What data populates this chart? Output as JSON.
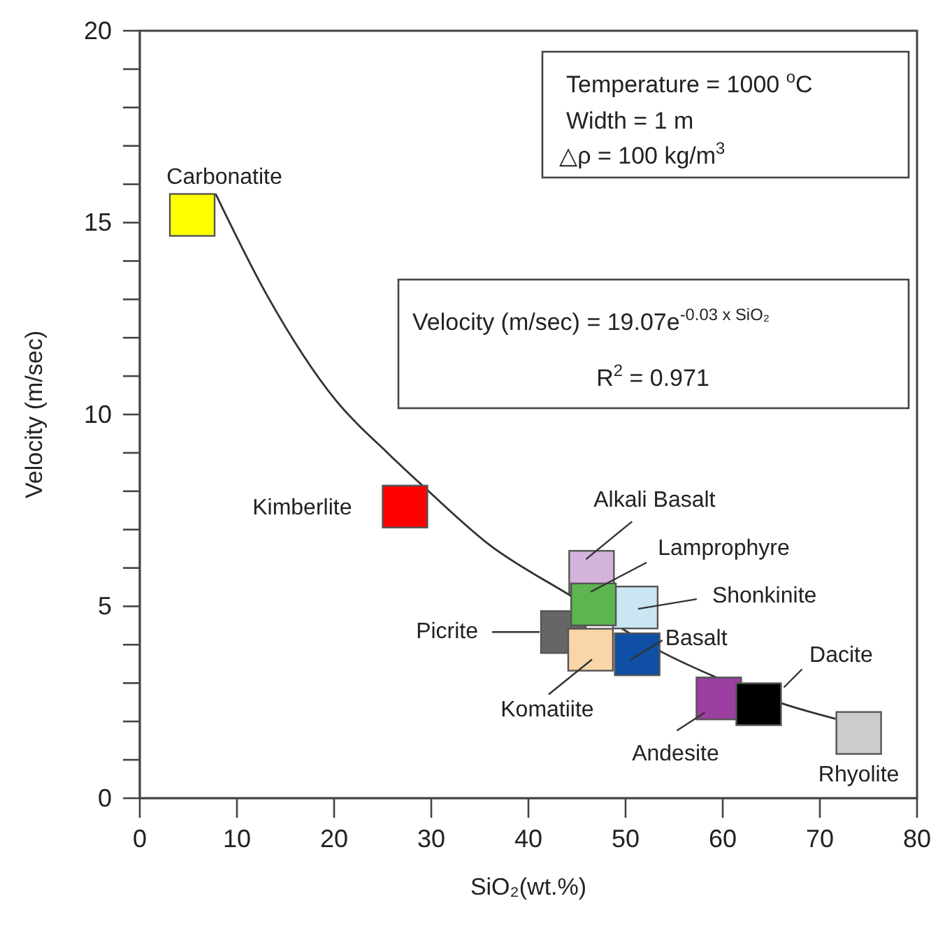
{
  "chart_data": {
    "type": "scatter",
    "xlabel": "SiO₂(wt.%)",
    "ylabel": "Velocity (m/sec)",
    "xlim": [
      0,
      80
    ],
    "ylim": [
      0,
      20
    ],
    "xticks": [
      0,
      10,
      20,
      30,
      40,
      50,
      60,
      70,
      80
    ],
    "yticks": [
      0,
      {
        "value": 1,
        "label": null
      },
      {
        "value": 2,
        "label": null
      },
      {
        "value": 3,
        "label": null
      },
      {
        "value": 4,
        "label": null
      },
      5,
      {
        "value": 6,
        "label": null
      },
      {
        "value": 7,
        "label": null
      },
      {
        "value": 8,
        "label": null
      },
      {
        "value": 9,
        "label": null
      },
      10,
      {
        "value": 11,
        "label": null
      },
      {
        "value": 12,
        "label": null
      },
      {
        "value": 13,
        "label": null
      },
      {
        "value": 14,
        "label": null
      },
      15,
      {
        "value": 16,
        "label": null
      },
      {
        "value": 17,
        "label": null
      },
      {
        "value": 18,
        "label": null
      },
      {
        "value": 19,
        "label": null
      },
      20
    ],
    "grid": false,
    "legend": false,
    "marker": "square",
    "annotations": [
      "Temperature = 1000 $^{o}$C",
      "Width = 1 m",
      "△ρ = 100 kg/m$^{3}$",
      "Velocity (m/sec) = 19.07e$^{-0.03 x SiO₂}$",
      "R$^{2}$ = 0.971"
    ],
    "series": [
      {
        "type": "line",
        "color": "#333333",
        "marker": "none",
        "line_style": "solid",
        "x": [
          7.8,
          13,
          20.2,
          25.5,
          29.3,
          36,
          44.2,
          53.8,
          59.5,
          66.1,
          71.6
        ],
        "values": [
          15.75,
          13.15,
          10.36,
          9.0,
          8.1,
          6.6,
          5.3,
          3.8,
          3.13,
          2.47,
          2.07
        ]
      },
      {
        "name": "Carbonatite",
        "color": "#ffff00",
        "x": [
          5.4
        ],
        "values": [
          15.2
        ]
      },
      {
        "name": "Kimberlite",
        "color": "#ff0000",
        "x": [
          27.3
        ],
        "values": [
          7.6
        ]
      },
      {
        "name": "Alkali Basalt",
        "color": "#d4b3dd",
        "x": [
          46.5
        ],
        "values": [
          5.9
        ]
      },
      {
        "name": "Picrite",
        "color": "#666666",
        "x": [
          43.6
        ],
        "values": [
          4.33
        ]
      },
      {
        "name": "Shonkinite",
        "color": "#c9e6f2",
        "x": [
          51.0
        ],
        "values": [
          4.97
        ]
      },
      {
        "name": "Lamprophyre",
        "color": "#5cb54f",
        "x": [
          46.7
        ],
        "values": [
          5.05
        ]
      },
      {
        "name": "Komatiite",
        "color": "#f9d5a7",
        "x": [
          46.4
        ],
        "values": [
          3.87
        ]
      },
      {
        "name": "Basalt",
        "color": "#0f4fa6",
        "x": [
          51.2
        ],
        "values": [
          3.75
        ]
      },
      {
        "name": "Andesite",
        "color": "#9b3fa0",
        "x": [
          59.6
        ],
        "values": [
          2.6
        ]
      },
      {
        "name": "Dacite",
        "color": "#000000",
        "x": [
          63.7
        ],
        "values": [
          2.45
        ]
      },
      {
        "name": "Rhyolite",
        "color": "#cccccc",
        "x": [
          74.0
        ],
        "values": [
          1.7
        ]
      }
    ]
  }
}
